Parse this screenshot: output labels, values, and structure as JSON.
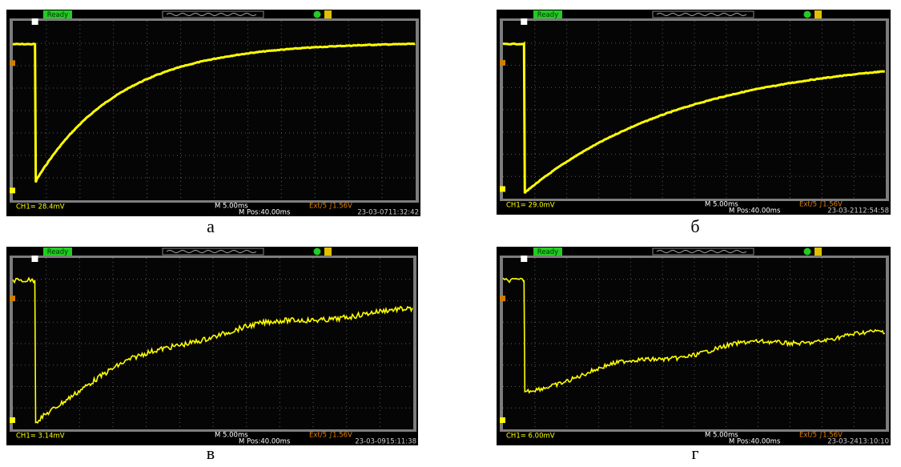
{
  "panels": [
    {
      "label": "а",
      "status": "Ready",
      "channel": "CH1= 28.4mV",
      "timebase": "M 5.00ms",
      "position": "M Pos:40.00ms",
      "trigger": "Ext/5 ∫1.56V",
      "timestamp": "23-03-0711:32:42"
    },
    {
      "label": "б",
      "status": "Ready",
      "channel": "CH1= 29.0mV",
      "timebase": "M 5.00ms",
      "position": "M Pos:40.00ms",
      "trigger": "Ext/5 ∫1.56V",
      "timestamp": "23-03-2112:54:58"
    },
    {
      "label": "в",
      "status": "Ready",
      "channel": "CH1= 3.14mV",
      "timebase": "M 5.00ms",
      "position": "M Pos:40.00ms",
      "trigger": "Ext/5 ∫1.56V",
      "timestamp": "23-03-0915:11:38"
    },
    {
      "label": "г",
      "status": "Ready",
      "channel": "CH1= 6.00mV",
      "timebase": "M 5.00ms",
      "position": "M Pos:40.00ms",
      "trigger": "Ext/5 ∫1.56V",
      "timestamp": "23-03-2413:10:10"
    }
  ]
}
